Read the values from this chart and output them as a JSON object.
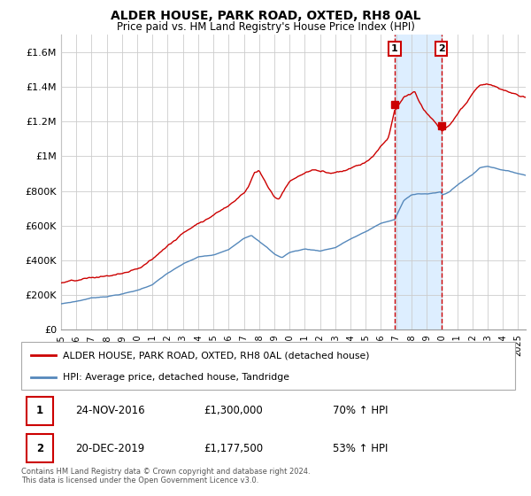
{
  "title": "ALDER HOUSE, PARK ROAD, OXTED, RH8 0AL",
  "subtitle": "Price paid vs. HM Land Registry's House Price Index (HPI)",
  "legend_line1": "ALDER HOUSE, PARK ROAD, OXTED, RH8 0AL (detached house)",
  "legend_line2": "HPI: Average price, detached house, Tandridge",
  "annotation1_label": "1",
  "annotation1_date": "24-NOV-2016",
  "annotation1_price": "£1,300,000",
  "annotation1_hpi": "70% ↑ HPI",
  "annotation2_label": "2",
  "annotation2_date": "20-DEC-2019",
  "annotation2_price": "£1,177,500",
  "annotation2_hpi": "53% ↑ HPI",
  "footnote": "Contains HM Land Registry data © Crown copyright and database right 2024.\nThis data is licensed under the Open Government Licence v3.0.",
  "red_color": "#cc0000",
  "blue_color": "#5588bb",
  "shade_color": "#ddeeff",
  "background_color": "#ffffff",
  "grid_color": "#cccccc",
  "ylim": [
    0,
    1700000
  ],
  "yticks": [
    0,
    200000,
    400000,
    600000,
    800000,
    1000000,
    1200000,
    1400000,
    1600000
  ],
  "ytick_labels": [
    "£0",
    "£200K",
    "£400K",
    "£600K",
    "£800K",
    "£1M",
    "£1.2M",
    "£1.4M",
    "£1.6M"
  ],
  "sale1_x": 2016.9,
  "sale1_y": 1300000,
  "sale2_x": 2019.97,
  "sale2_y": 1177500,
  "xmin": 1995.0,
  "xmax": 2025.5
}
